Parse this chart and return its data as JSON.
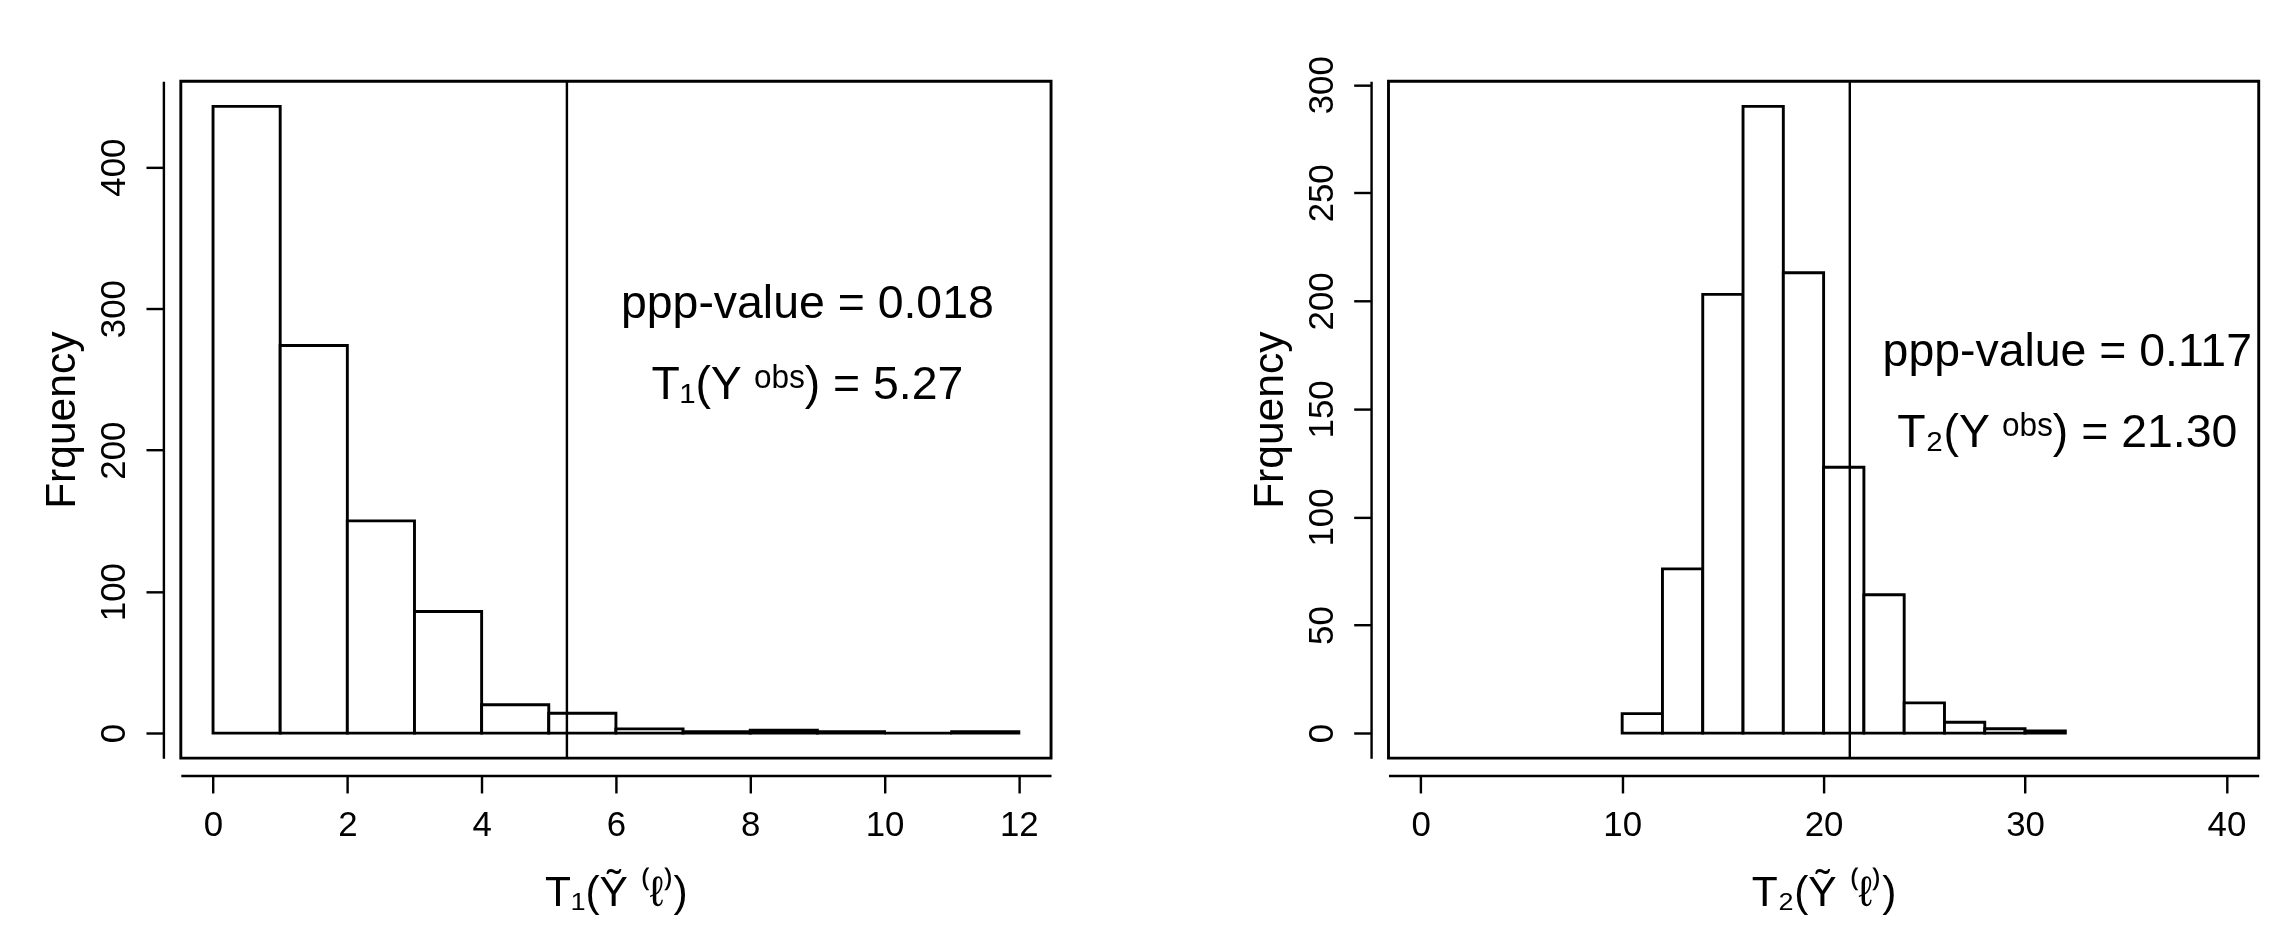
{
  "chart_data": [
    {
      "type": "histogram",
      "bins": [
        0,
        1,
        2,
        3,
        4,
        5,
        6,
        7,
        8,
        9,
        10,
        11,
        12
      ],
      "values": [
        443,
        274,
        150,
        86,
        20,
        14,
        3,
        1,
        2,
        1,
        0,
        1
      ],
      "xlim": [
        -0.48,
        12.48
      ],
      "ylim": [
        -17.7,
        460.7
      ],
      "xticks": [
        0,
        2,
        4,
        6,
        8,
        10,
        12
      ],
      "yticks": [
        0,
        100,
        200,
        300,
        400
      ],
      "xlabel": "T₁(Ỹ ⁽ℓ⁾)",
      "ylabel": "Frquency",
      "grid": false,
      "color": "#000000",
      "ref_lines": [
        {
          "axis": "x",
          "value": 5.27,
          "color": "#000000"
        }
      ],
      "annotations": [
        "ppp-value =  0.018",
        "T₁(Y ᵒᵇˢ) =  5.27"
      ]
    },
    {
      "type": "histogram",
      "bins": [
        10,
        12,
        14,
        16,
        18,
        20,
        22,
        24,
        26,
        28,
        30,
        32
      ],
      "values": [
        9,
        76,
        203,
        290,
        213,
        123,
        64,
        14,
        5,
        2,
        1
      ],
      "xlim": [
        -1.6,
        41.6
      ],
      "ylim": [
        -11.6,
        301.6
      ],
      "xticks": [
        0,
        10,
        20,
        30,
        40
      ],
      "yticks": [
        0,
        50,
        100,
        150,
        200,
        250,
        300
      ],
      "xlabel": "T₂(Ỹ ⁽ℓ⁾)",
      "ylabel": "Frquency",
      "grid": false,
      "color": "#000000",
      "ref_lines": [
        {
          "axis": "x",
          "value": 21.3,
          "color": "#000000"
        }
      ],
      "annotations": [
        "ppp-value =  0.117",
        "T₂(Y ᵒᵇˢ) =  21.30"
      ]
    }
  ]
}
